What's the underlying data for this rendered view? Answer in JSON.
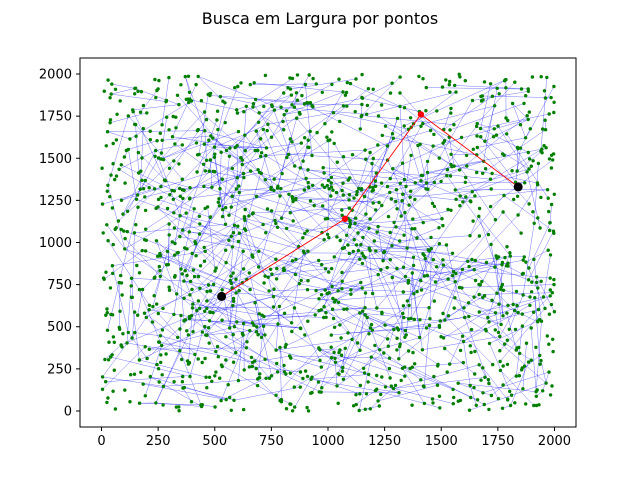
{
  "chart_data": {
    "type": "scatter",
    "title": "Busca em Largura por pontos",
    "xlabel": "",
    "ylabel": "",
    "xlim": [
      -95,
      2095
    ],
    "ylim": [
      -95,
      2095
    ],
    "xticks": [
      0,
      250,
      500,
      750,
      1000,
      1250,
      1500,
      1750,
      2000
    ],
    "yticks": [
      0,
      250,
      500,
      750,
      1000,
      1250,
      1500,
      1750,
      2000
    ],
    "xtick_labels": [
      "0",
      "250",
      "500",
      "750",
      "1000",
      "1250",
      "1500",
      "1750",
      "2000"
    ],
    "ytick_labels": [
      "0",
      "250",
      "500",
      "750",
      "1000",
      "1250",
      "1500",
      "1750",
      "2000"
    ],
    "grid": false,
    "node_count_estimate": 1500,
    "node_color": "#007f00",
    "edge_color": "#0000ff",
    "path_color": "#ff0000",
    "endpoint_color": "#000000",
    "path": [
      {
        "x": 530,
        "y": 680
      },
      {
        "x": 1075,
        "y": 1140
      },
      {
        "x": 1410,
        "y": 1760
      },
      {
        "x": 1840,
        "y": 1330
      }
    ],
    "endpoints": [
      {
        "x": 530,
        "y": 680
      },
      {
        "x": 1840,
        "y": 1330
      }
    ]
  }
}
